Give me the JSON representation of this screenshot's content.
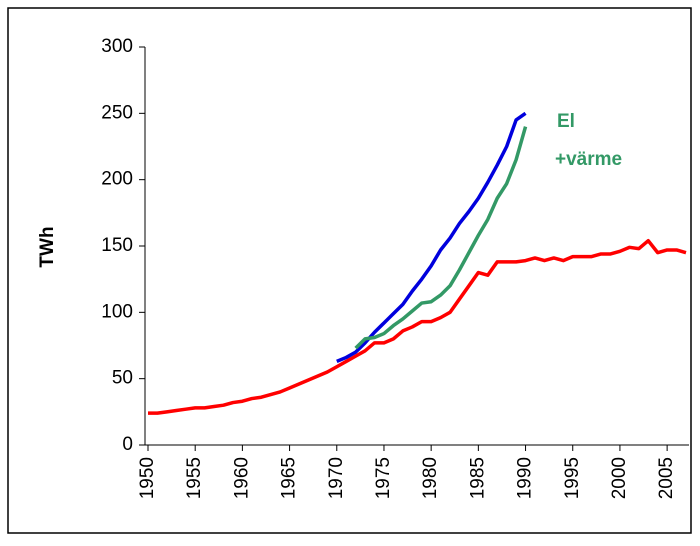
{
  "chart_data": {
    "type": "line",
    "y_label": "TWh",
    "annotations": [
      "El",
      "+värme"
    ],
    "annotation_color": "#339966",
    "xlim": [
      1950,
      2007
    ],
    "xticks": [
      1950,
      1955,
      1960,
      1965,
      1970,
      1975,
      1980,
      1985,
      1990,
      1995,
      2000,
      2005
    ],
    "ylim": [
      0,
      300
    ],
    "yticks": [
      0,
      50,
      100,
      150,
      200,
      250,
      300
    ],
    "grid": false,
    "series": [
      {
        "color": "#ff0000",
        "x": [
          1950,
          1951,
          1952,
          1953,
          1954,
          1955,
          1956,
          1957,
          1958,
          1959,
          1960,
          1961,
          1962,
          1963,
          1964,
          1965,
          1966,
          1967,
          1968,
          1969,
          1970,
          1971,
          1972,
          1973,
          1974,
          1975,
          1976,
          1977,
          1978,
          1979,
          1980,
          1981,
          1982,
          1983,
          1984,
          1985,
          1986,
          1987,
          1988,
          1989,
          1990,
          1991,
          1992,
          1993,
          1994,
          1995,
          1996,
          1997,
          1998,
          1999,
          2000,
          2001,
          2002,
          2003,
          2004,
          2005,
          2006,
          2007
        ],
        "values": [
          24,
          24,
          25,
          26,
          27,
          28,
          28,
          29,
          30,
          32,
          33,
          35,
          36,
          38,
          40,
          43,
          46,
          49,
          52,
          55,
          59,
          63,
          67,
          71,
          77,
          77,
          80,
          86,
          89,
          93,
          93,
          96,
          100,
          110,
          120,
          130,
          128,
          138,
          138,
          138,
          139,
          141,
          139,
          141,
          139,
          142,
          142,
          142,
          144,
          144,
          146,
          149,
          148,
          154,
          145,
          147,
          147,
          145
        ]
      },
      {
        "color": "#0000dd",
        "x": [
          1970,
          1971,
          1972,
          1973,
          1974,
          1975,
          1976,
          1977,
          1978,
          1979,
          1980,
          1981,
          1982,
          1983,
          1984,
          1985,
          1986,
          1987,
          1988,
          1989,
          1990
        ],
        "values": [
          63,
          66,
          70,
          77,
          85,
          92,
          99,
          106,
          116,
          125,
          135,
          147,
          156,
          167,
          176,
          186,
          198,
          211,
          225,
          245,
          250
        ]
      },
      {
        "color": "#339966",
        "x": [
          1972,
          1973,
          1974,
          1975,
          1976,
          1977,
          1978,
          1979,
          1980,
          1981,
          1982,
          1983,
          1984,
          1985,
          1986,
          1987,
          1988,
          1989,
          1990
        ],
        "values": [
          73,
          80,
          81,
          84,
          90,
          95,
          101,
          107,
          108,
          113,
          120,
          132,
          145,
          158,
          170,
          186,
          197,
          215,
          240
        ]
      }
    ]
  }
}
